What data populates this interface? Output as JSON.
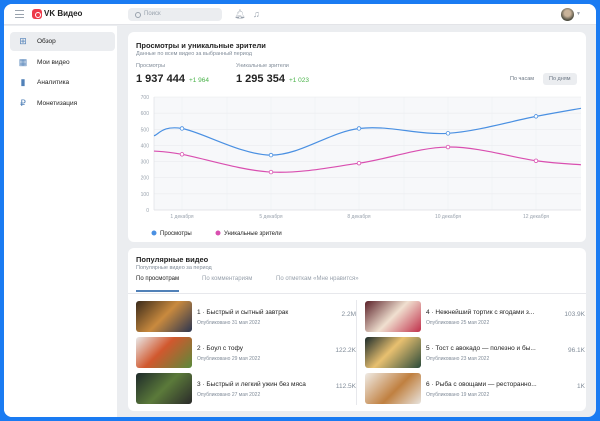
{
  "header": {
    "brand": "VK Видео",
    "search_placeholder": "Поиск"
  },
  "sidebar": {
    "items": [
      {
        "label": "Обзор",
        "icon": "grid-icon"
      },
      {
        "label": "Мои видео",
        "icon": "film-icon"
      },
      {
        "label": "Аналитика",
        "icon": "bar-chart-icon"
      },
      {
        "label": "Монетизация",
        "icon": "ruble-icon"
      }
    ]
  },
  "stats": {
    "title": "Просмотры и уникальные зрители",
    "subtitle": "Данные по всем видео за выбранный период",
    "views_label": "Просмотры",
    "views_value": "1 937 444",
    "views_delta": "+1 964",
    "unique_label": "Уникальные зрители",
    "unique_value": "1 295 354",
    "unique_delta": "+1 023",
    "btn_hours": "По часам",
    "btn_days": "По дням"
  },
  "chart_data": {
    "type": "line",
    "ylim": [
      0,
      700
    ],
    "yticks": [
      "0",
      "100",
      "200",
      "300",
      "400",
      "500",
      "600",
      "700"
    ],
    "categories": [
      "",
      "1 декабря",
      "5 декабря",
      "8 декабря",
      "10 декабря",
      "12 декабря",
      ""
    ],
    "series": [
      {
        "name": "Просмотры",
        "color": "#4a90e2",
        "values": [
          460,
          505,
          340,
          505,
          475,
          580,
          630
        ]
      },
      {
        "name": "Уникальные зрители",
        "color": "#d94fb0",
        "values": [
          365,
          345,
          235,
          290,
          390,
          305,
          280
        ]
      }
    ],
    "grid": true,
    "legend": "bottom-left"
  },
  "popular": {
    "title": "Популярные видео",
    "subtitle": "Популярные видео за период",
    "tabs": [
      "По просмотрам",
      "По комментариям",
      "По отметкам «Мне нравится»"
    ],
    "videos": [
      {
        "title": "1 · Быстрый и сытный завтрак",
        "date": "Опубликовано 31 мая 2022",
        "count": "2.2M"
      },
      {
        "title": "2 · Боул с тофу",
        "date": "Опубликовано 29 мая 2022",
        "count": "122.2K"
      },
      {
        "title": "3 · Быстрый и легкий ужин без мяса",
        "date": "Опубликовано 27 мая 2022",
        "count": "112.5K"
      },
      {
        "title": "4 · Нежнейший тортик с ягодами з...",
        "date": "Опубликовано 25 мая 2022",
        "count": "103.9K"
      },
      {
        "title": "5 · Тост с авокадо — полезно и бы...",
        "date": "Опубликовано 23 мая 2022",
        "count": "96.1K"
      },
      {
        "title": "6 · Рыба с овощами — ресторанно...",
        "date": "Опубликовано 19 мая 2022",
        "count": "1K"
      }
    ]
  }
}
